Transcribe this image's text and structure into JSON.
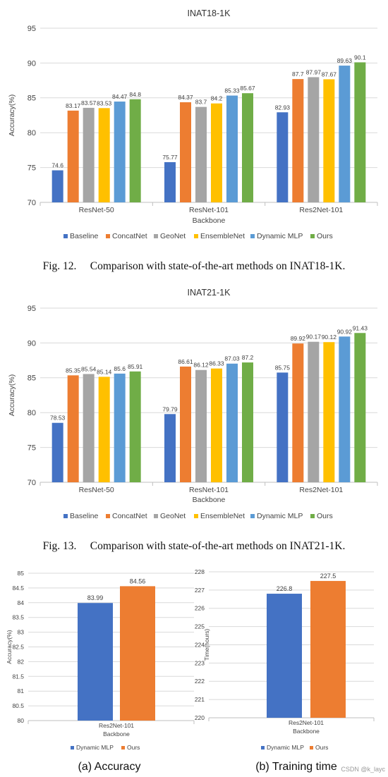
{
  "chart_data": [
    {
      "type": "bar",
      "title": "INAT18-1K",
      "xlabel": "Backbone",
      "ylabel": "Accuracy(%)",
      "ylim": [
        70,
        95
      ],
      "yticks": [
        70,
        75,
        80,
        85,
        90,
        95
      ],
      "categories": [
        "ResNet-50",
        "ResNet-101",
        "Res2Net-101"
      ],
      "legend_position": "bottom",
      "series": [
        {
          "name": "Baseline",
          "color": "#4472C4",
          "values": [
            74.6,
            75.77,
            82.93
          ]
        },
        {
          "name": "ConcatNet",
          "color": "#ED7D31",
          "values": [
            83.17,
            84.37,
            87.7
          ]
        },
        {
          "name": "GeoNet",
          "color": "#A5A5A5",
          "values": [
            83.57,
            83.7,
            87.97
          ]
        },
        {
          "name": "EnsembleNet",
          "color": "#FFC000",
          "values": [
            83.53,
            84.2,
            87.67
          ]
        },
        {
          "name": "Dynamic MLP",
          "color": "#5B9BD5",
          "values": [
            84.47,
            85.33,
            89.63
          ]
        },
        {
          "name": "Ours",
          "color": "#70AD47",
          "values": [
            84.8,
            85.67,
            90.1
          ]
        }
      ]
    },
    {
      "type": "bar",
      "title": "INAT21-1K",
      "xlabel": "Backbone",
      "ylabel": "Accuracy(%)",
      "ylim": [
        70,
        95
      ],
      "yticks": [
        70,
        75,
        80,
        85,
        90,
        95
      ],
      "categories": [
        "ResNet-50",
        "ResNet-101",
        "Res2Net-101"
      ],
      "legend_position": "bottom",
      "series": [
        {
          "name": "Baseline",
          "color": "#4472C4",
          "values": [
            78.53,
            79.79,
            85.75
          ]
        },
        {
          "name": "ConcatNet",
          "color": "#ED7D31",
          "values": [
            85.35,
            86.61,
            89.92
          ]
        },
        {
          "name": "GeoNet",
          "color": "#A5A5A5",
          "values": [
            85.54,
            86.12,
            90.17
          ]
        },
        {
          "name": "EnsembleNet",
          "color": "#FFC000",
          "values": [
            85.14,
            86.33,
            90.12
          ]
        },
        {
          "name": "Dynamic MLP",
          "color": "#5B9BD5",
          "values": [
            85.6,
            87.03,
            90.92
          ]
        },
        {
          "name": "Ours",
          "color": "#70AD47",
          "values": [
            85.91,
            87.2,
            91.43
          ]
        }
      ]
    },
    {
      "type": "bar",
      "title": "",
      "xlabel": "Backbone",
      "ylabel": "Accuracy(%)",
      "ylim": [
        80,
        85
      ],
      "yticks": [
        80,
        80.5,
        81,
        81.5,
        82,
        82.5,
        83,
        83.5,
        84,
        84.5,
        85
      ],
      "categories": [
        "Res2Net-101"
      ],
      "legend_position": "bottom",
      "series": [
        {
          "name": "Dynamic MLP",
          "color": "#4472C4",
          "values": [
            83.99
          ]
        },
        {
          "name": "Ours",
          "color": "#ED7D31",
          "values": [
            84.56
          ]
        }
      ]
    },
    {
      "type": "bar",
      "title": "",
      "xlabel": "Backbone",
      "ylabel": "Time(hours)",
      "ylim": [
        220,
        228
      ],
      "yticks": [
        220,
        221,
        222,
        223,
        224,
        225,
        226,
        227,
        228
      ],
      "categories": [
        "Res2Net-101"
      ],
      "legend_position": "bottom",
      "series": [
        {
          "name": "Dynamic MLP",
          "color": "#4472C4",
          "values": [
            226.8
          ]
        },
        {
          "name": "Ours",
          "color": "#ED7D31",
          "values": [
            227.5
          ]
        }
      ]
    }
  ],
  "captions": {
    "fig12": "Fig. 12.  Comparison with state-of-the-art methods on INAT18-1K.",
    "fig13": "Fig. 13.  Comparison with state-of-the-art methods on INAT21-1K.",
    "sub_a": "(a) Accuracy",
    "sub_b": "(b) Training time"
  },
  "watermark": "CSDN @k_layc"
}
